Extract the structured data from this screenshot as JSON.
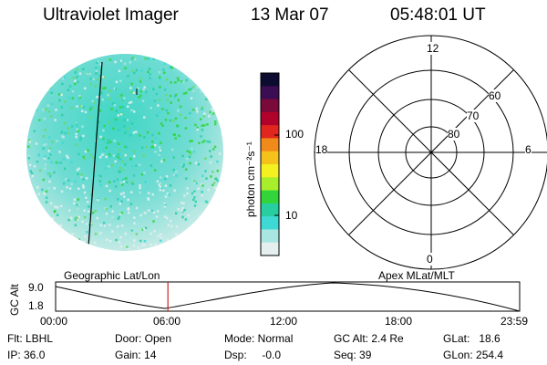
{
  "header": {
    "title": "Ultraviolet Imager",
    "date": "13 Mar 07",
    "time": "05:48:01 UT"
  },
  "colorbar": {
    "label": "photon cm⁻²s⁻¹",
    "ticks": [
      "100",
      "10"
    ],
    "colors": [
      "#0b0c2f",
      "#3b0d53",
      "#7a0a3a",
      "#b0022a",
      "#e0261e",
      "#f08a1a",
      "#f5c21b",
      "#f3f120",
      "#a9ee2a",
      "#33d43a",
      "#27cfa0",
      "#3fd9d5",
      "#a9e6e2",
      "#e4efee"
    ]
  },
  "polar": {
    "mlt_labels": {
      "top": "12",
      "left": "18",
      "right": "6",
      "bottom": "0"
    },
    "lat_labels": [
      "60",
      "70",
      "80"
    ]
  },
  "timeline": {
    "ylabel": "GC Alt",
    "yticks": [
      "9.0",
      "1.8"
    ],
    "left_title": "Geographic Lat/Lon",
    "right_title": "Apex MLat/MLT",
    "xticks": [
      "00:00",
      "06:00",
      "12:00",
      "18:00",
      "23:59"
    ],
    "current_time_fraction": 0.242
  },
  "info": {
    "flt": "Flt: LBHL",
    "ip": "IP: 36.0",
    "door": "Door: Open",
    "gain": "Gain: 14",
    "mode": "Mode: Normal",
    "dsp": "Dsp:     -0.0",
    "gcalt": "GC Alt: 2.4 Re",
    "seq": "Seq: 39",
    "glat": "GLat:   18.6",
    "glon": "GLon: 254.4"
  }
}
